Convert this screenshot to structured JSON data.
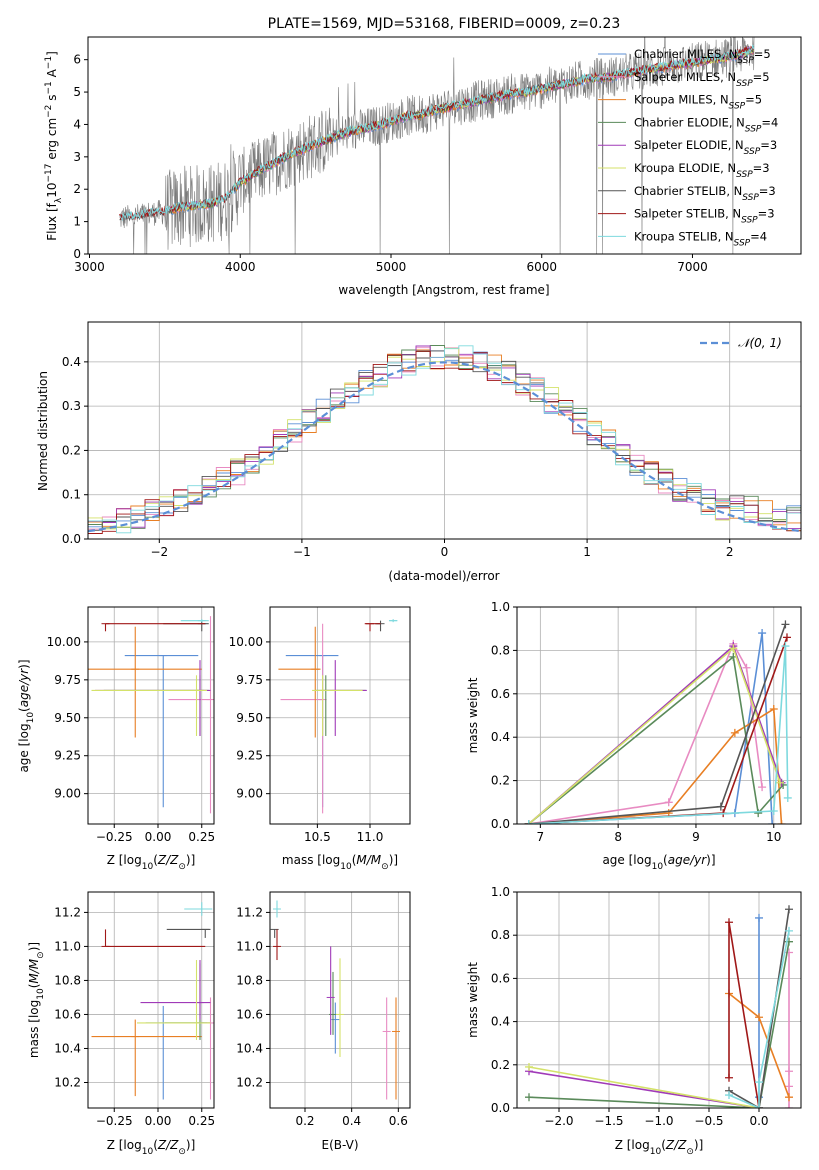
{
  "figure_title": "PLATE=1569, MJD=53168, FIBERID=0009, z=0.23",
  "colors": {
    "Chabrier MILES": "#5b8fd6",
    "Salpeter MILES": "#e88bc2",
    "Kroupa MILES": "#e87f24",
    "Chabrier ELODIE": "#5a8a5a",
    "Salpeter ELODIE": "#a03ab8",
    "Kroupa ELODIE": "#d4e26a",
    "Chabrier STELIB": "#555555",
    "Salpeter STELIB": "#a01818",
    "Kroupa STELIB": "#7ed9de",
    "data": "#7a7a7a",
    "normal": "#5b8fd6"
  },
  "chart_data": [
    {
      "id": "spectrum",
      "type": "line",
      "title": "PLATE=1569, MJD=53168, FIBERID=0009, z=0.23",
      "xlabel": "wavelength [Angstrom, rest frame]",
      "ylabel": "Flux [f_λ 10^-17 erg cm^-2 s^-1 A^-1]",
      "xlim": [
        2990,
        7720
      ],
      "ylim": [
        0,
        6.7
      ],
      "xticks": [
        3000,
        4000,
        5000,
        6000,
        7000
      ],
      "yticks": [
        0,
        1,
        2,
        3,
        4,
        5,
        6
      ],
      "legend_position": "right",
      "legend": [
        {
          "label": "Chabrier MILES, N_SSP=5",
          "series": "Chabrier MILES"
        },
        {
          "label": "Salpeter MILES, N_SSP=5",
          "series": "Salpeter MILES"
        },
        {
          "label": "Kroupa MILES, N_SSP=5",
          "series": "Kroupa MILES"
        },
        {
          "label": "Chabrier ELODIE, N_SSP=4",
          "series": "Chabrier ELODIE"
        },
        {
          "label": "Salpeter ELODIE, N_SSP=3",
          "series": "Salpeter ELODIE"
        },
        {
          "label": "Kroupa ELODIE, N_SSP=3",
          "series": "Kroupa ELODIE"
        },
        {
          "label": "Chabrier STELIB, N_SSP=3",
          "series": "Chabrier STELIB"
        },
        {
          "label": "Salpeter STELIB, N_SSP=3",
          "series": "Salpeter STELIB"
        },
        {
          "label": "Kroupa STELIB, N_SSP=4",
          "series": "Kroupa STELIB"
        }
      ],
      "data_curve_x": [
        3200,
        3300,
        3400,
        3500,
        3600,
        3700,
        3800,
        3900,
        4000,
        4100,
        4200,
        4300,
        4400,
        4500,
        4600,
        4700,
        4800,
        4900,
        5000,
        5100,
        5200,
        5300,
        5400,
        5500,
        5600,
        5700,
        5800,
        5900,
        6000,
        6100,
        6200,
        6300,
        6400,
        6500,
        6600,
        6700,
        6800,
        6900,
        7000,
        7100,
        7200,
        7300,
        7400
      ],
      "data_curve_y": [
        1.1,
        1.15,
        1.25,
        1.3,
        1.45,
        1.5,
        1.55,
        1.7,
        2.2,
        2.5,
        2.75,
        3.0,
        3.2,
        3.4,
        3.55,
        3.75,
        3.85,
        3.95,
        4.1,
        4.25,
        4.3,
        4.45,
        4.55,
        4.65,
        4.75,
        4.85,
        4.95,
        5.0,
        5.1,
        5.2,
        5.3,
        5.4,
        5.45,
        5.5,
        5.6,
        5.7,
        5.75,
        5.85,
        5.9,
        6.0,
        6.05,
        6.15,
        6.3
      ],
      "note": "model curves follow the data curve; observed spectrum (grey) is noisy around it"
    },
    {
      "id": "residuals",
      "type": "histogram",
      "xlabel": "(data-model)/error",
      "ylabel": "Normed distribution",
      "xlim": [
        -2.5,
        2.5
      ],
      "ylim": [
        0,
        0.49
      ],
      "xticks": [
        -2,
        -1,
        0,
        1,
        2
      ],
      "yticks": [
        0,
        0.1,
        0.2,
        0.3,
        0.4
      ],
      "legend": [
        {
          "label": "𝒩(0,1)",
          "style": "dashed"
        }
      ],
      "legend_position": "top-right",
      "bin_width": 0.1
    },
    {
      "id": "z-vs-age",
      "type": "errorbar",
      "xlabel": "Z [log10(Z/Z☉)]",
      "ylabel": "age [log10(age/yr)]",
      "xlim": [
        -0.4,
        0.32
      ],
      "ylim": [
        8.8,
        10.23
      ],
      "xticks": [
        -0.25,
        0.0,
        0.25
      ],
      "xtick_labels": [
        "−0.25",
        "0.00",
        "0.25"
      ],
      "yticks": [
        9.0,
        9.25,
        9.5,
        9.75,
        10.0
      ],
      "ytick_labels": [
        "9.00",
        "9.25",
        "9.50",
        "9.75",
        "10.00"
      ],
      "points": [
        {
          "series": "Chabrier MILES",
          "x": 0.03,
          "xerr": [
            0.22,
            0.2
          ],
          "y": 9.91,
          "yerr": [
            1.0,
            0.0
          ]
        },
        {
          "series": "Salpeter MILES",
          "x": 0.3,
          "xerr": [
            0.24,
            0.0
          ],
          "y": 9.62,
          "yerr": [
            0.75,
            0.55
          ]
        },
        {
          "series": "Kroupa MILES",
          "x": -0.13,
          "xerr": [
            0.27,
            0.38
          ],
          "y": 9.82,
          "yerr": [
            0.45,
            0.28
          ]
        },
        {
          "series": "Chabrier ELODIE",
          "x": 0.24,
          "xerr": [
            0.55,
            0.05
          ],
          "y": 9.68,
          "yerr": [
            0.3,
            0.1
          ]
        },
        {
          "series": "Salpeter ELODIE",
          "x": 0.24,
          "xerr": [
            0.6,
            0.06
          ],
          "y": 9.68,
          "yerr": [
            0.3,
            0.2
          ]
        },
        {
          "series": "Kroupa ELODIE",
          "x": 0.22,
          "xerr": [
            0.6,
            0.06
          ],
          "y": 9.68,
          "yerr": [
            0.3,
            0.1
          ]
        },
        {
          "series": "Chabrier STELIB",
          "x": 0.25,
          "xerr": [
            0.22,
            0.04
          ],
          "y": 10.12,
          "yerr": [
            0.05,
            0.02
          ]
        },
        {
          "series": "Salpeter STELIB",
          "x": -0.3,
          "xerr": [
            0.0,
            0.57
          ],
          "y": 10.12,
          "yerr": [
            0.05,
            0.0
          ]
        },
        {
          "series": "Kroupa STELIB",
          "x": 0.25,
          "xerr": [
            0.12,
            0.04
          ],
          "y": 10.14,
          "yerr": [
            0.01,
            0.01
          ]
        }
      ]
    },
    {
      "id": "mass-vs-age",
      "type": "errorbar",
      "xlabel": "mass [log10(M/M☉)]",
      "ylabel": "",
      "xlim": [
        10.05,
        11.38
      ],
      "ylim": [
        8.8,
        10.23
      ],
      "xticks": [
        10.5,
        11.0
      ],
      "xtick_labels": [
        "10.5",
        "11.0"
      ],
      "yticks": [
        9.0,
        9.25,
        9.5,
        9.75,
        10.0
      ],
      "ytick_labels": [
        "9.00",
        "9.25",
        "9.50",
        "9.75",
        "10.00"
      ],
      "points": [
        {
          "series": "Chabrier MILES",
          "x": 10.55,
          "xerr": [
            0.35,
            0.15
          ],
          "y": 9.91,
          "yerr": [
            1.0,
            0.0
          ]
        },
        {
          "series": "Salpeter MILES",
          "x": 10.55,
          "xerr": [
            0.4,
            0.0
          ],
          "y": 9.62,
          "yerr": [
            0.75,
            0.5
          ]
        },
        {
          "series": "Kroupa MILES",
          "x": 10.48,
          "xerr": [
            0.35,
            0.05
          ],
          "y": 9.82,
          "yerr": [
            0.45,
            0.28
          ]
        },
        {
          "series": "Chabrier ELODIE",
          "x": 10.58,
          "xerr": [
            0.1,
            0.38
          ],
          "y": 9.68,
          "yerr": [
            0.3,
            0.1
          ]
        },
        {
          "series": "Salpeter ELODIE",
          "x": 10.67,
          "xerr": [
            0.1,
            0.3
          ],
          "y": 9.68,
          "yerr": [
            0.3,
            0.2
          ]
        },
        {
          "series": "Kroupa ELODIE",
          "x": 10.55,
          "xerr": [
            0.1,
            0.38
          ],
          "y": 9.68,
          "yerr": [
            0.3,
            0.1
          ]
        },
        {
          "series": "Chabrier STELIB",
          "x": 11.1,
          "xerr": [
            0.05,
            0.0
          ],
          "y": 10.12,
          "yerr": [
            0.05,
            0.02
          ]
        },
        {
          "series": "Salpeter STELIB",
          "x": 11.0,
          "xerr": [
            0.05,
            0.1
          ],
          "y": 10.12,
          "yerr": [
            0.05,
            0.0
          ]
        },
        {
          "series": "Kroupa STELIB",
          "x": 11.22,
          "xerr": [
            0.04,
            0.04
          ],
          "y": 10.14,
          "yerr": [
            0.01,
            0.01
          ]
        }
      ]
    },
    {
      "id": "age-vs-weight",
      "type": "line",
      "xlabel": "age [log10(age/yr)]",
      "ylabel": "mass weight",
      "xlim": [
        6.7,
        10.35
      ],
      "ylim": [
        0,
        1.0
      ],
      "xticks": [
        7,
        8,
        9,
        10
      ],
      "yticks": [
        0.0,
        0.2,
        0.4,
        0.6,
        0.8,
        1.0
      ],
      "yticks_format": 1,
      "series": [
        {
          "name": "Chabrier MILES",
          "x": [
            6.85,
            9.5,
            9.85,
            9.98
          ],
          "y": [
            0.0,
            0.05,
            0.88,
            0.0
          ]
        },
        {
          "name": "Salpeter MILES",
          "x": [
            6.85,
            8.65,
            9.48,
            9.65,
            9.85
          ],
          "y": [
            0.0,
            0.1,
            0.83,
            0.72,
            0.17
          ]
        },
        {
          "name": "Kroupa MILES",
          "x": [
            6.85,
            8.65,
            9.5,
            10.0,
            10.1
          ],
          "y": [
            0.0,
            0.05,
            0.42,
            0.53,
            0.0
          ]
        },
        {
          "name": "Chabrier ELODIE",
          "x": [
            6.85,
            9.48,
            9.8,
            10.12
          ],
          "y": [
            0.0,
            0.77,
            0.05,
            0.18
          ]
        },
        {
          "name": "Salpeter ELODIE",
          "x": [
            6.85,
            9.48,
            10.1
          ],
          "y": [
            0.0,
            0.82,
            0.19
          ]
        },
        {
          "name": "Kroupa ELODIE",
          "x": [
            6.85,
            9.48,
            10.08
          ],
          "y": [
            0.0,
            0.81,
            0.19
          ]
        },
        {
          "name": "Chabrier STELIB",
          "x": [
            6.85,
            9.32,
            10.15
          ],
          "y": [
            0.0,
            0.08,
            0.92
          ]
        },
        {
          "name": "Salpeter STELIB",
          "x": [
            6.85,
            9.35,
            10.17
          ],
          "y": [
            0.0,
            0.05,
            0.86
          ]
        },
        {
          "name": "Kroupa STELIB",
          "x": [
            6.85,
            10.0,
            10.15,
            10.18
          ],
          "y": [
            0.0,
            0.06,
            0.82,
            0.12
          ]
        }
      ]
    },
    {
      "id": "z-vs-mass",
      "type": "errorbar",
      "xlabel": "Z [log10(Z/Z☉)]",
      "ylabel": "mass [log10(M/M☉)]",
      "xlim": [
        -0.4,
        0.32
      ],
      "ylim": [
        10.05,
        11.32
      ],
      "xticks": [
        -0.25,
        0.0,
        0.25
      ],
      "xtick_labels": [
        "−0.25",
        "0.00",
        "0.25"
      ],
      "yticks": [
        10.2,
        10.4,
        10.6,
        10.8,
        11.0,
        11.2
      ],
      "ytick_labels": [
        "10.2",
        "10.4",
        "10.6",
        "10.8",
        "11.0",
        "11.2"
      ],
      "points": [
        {
          "series": "Chabrier MILES",
          "x": 0.03,
          "xerr": [
            0.1,
            0.25
          ],
          "y": 10.55,
          "yerr": [
            0.45,
            0.1
          ]
        },
        {
          "series": "Salpeter MILES",
          "x": 0.3,
          "xerr": [
            0.05,
            0.0
          ],
          "y": 10.55,
          "yerr": [
            0.45,
            0.15
          ]
        },
        {
          "series": "Kroupa MILES",
          "x": -0.13,
          "xerr": [
            0.25,
            0.38
          ],
          "y": 10.47,
          "yerr": [
            0.35,
            0.1
          ]
        },
        {
          "series": "Chabrier ELODIE",
          "x": 0.24,
          "xerr": [
            0.2,
            0.06
          ],
          "y": 10.55,
          "yerr": [
            0.1,
            0.35
          ]
        },
        {
          "series": "Salpeter ELODIE",
          "x": 0.24,
          "xerr": [
            0.34,
            0.06
          ],
          "y": 10.67,
          "yerr": [
            0.1,
            0.25
          ]
        },
        {
          "series": "Kroupa ELODIE",
          "x": 0.22,
          "xerr": [
            0.34,
            0.08
          ],
          "y": 10.55,
          "yerr": [
            0.1,
            0.37
          ]
        },
        {
          "series": "Chabrier STELIB",
          "x": 0.27,
          "xerr": [
            0.22,
            0.03
          ],
          "y": 11.1,
          "yerr": [
            0.05,
            0.0
          ]
        },
        {
          "series": "Salpeter STELIB",
          "x": -0.3,
          "xerr": [
            0.0,
            0.57
          ],
          "y": 11.0,
          "yerr": [
            0.0,
            0.1
          ]
        },
        {
          "series": "Kroupa STELIB",
          "x": 0.25,
          "xerr": [
            0.1,
            0.06
          ],
          "y": 11.22,
          "yerr": [
            0.04,
            0.04
          ]
        }
      ]
    },
    {
      "id": "ebv-vs-mass",
      "type": "errorbar",
      "xlabel": "E(B-V)",
      "ylabel": "",
      "xlim": [
        0.05,
        0.65
      ],
      "ylim": [
        10.05,
        11.32
      ],
      "xticks": [
        0.2,
        0.4,
        0.6
      ],
      "xtick_labels": [
        "0.2",
        "0.4",
        "0.6"
      ],
      "yticks": [
        10.2,
        10.4,
        10.6,
        10.8,
        11.0,
        11.2
      ],
      "ytick_labels": [
        "10.2",
        "10.4",
        "10.6",
        "10.8",
        "11.0",
        "11.2"
      ],
      "points": [
        {
          "series": "Chabrier MILES",
          "x": 0.33,
          "y": 10.57,
          "yerr": [
            0.2,
            0.1
          ]
        },
        {
          "series": "Salpeter MILES",
          "x": 0.55,
          "y": 10.5,
          "yerr": [
            0.4,
            0.2
          ]
        },
        {
          "series": "Kroupa MILES",
          "x": 0.59,
          "y": 10.5,
          "yerr": [
            0.4,
            0.2
          ]
        },
        {
          "series": "Chabrier ELODIE",
          "x": 0.32,
          "y": 10.6,
          "yerr": [
            0.12,
            0.25
          ]
        },
        {
          "series": "Salpeter ELODIE",
          "x": 0.31,
          "y": 10.7,
          "yerr": [
            0.22,
            0.3
          ]
        },
        {
          "series": "Kroupa ELODIE",
          "x": 0.35,
          "y": 10.6,
          "yerr": [
            0.25,
            0.33
          ]
        },
        {
          "series": "Chabrier STELIB",
          "x": 0.07,
          "y": 11.1,
          "yerr": [
            0.05,
            0.0
          ]
        },
        {
          "series": "Salpeter STELIB",
          "x": 0.08,
          "y": 11.0,
          "yerr": [
            0.08,
            0.1
          ]
        },
        {
          "series": "Kroupa STELIB",
          "x": 0.08,
          "y": 11.22,
          "yerr": [
            0.05,
            0.05
          ]
        }
      ]
    },
    {
      "id": "z-vs-weight",
      "type": "line",
      "xlabel": "Z [log10(Z/Z☉)]",
      "ylabel": "mass weight",
      "xlim": [
        -2.42,
        0.42
      ],
      "ylim": [
        0,
        1.0
      ],
      "xticks": [
        -2.0,
        -1.5,
        -1.0,
        -0.5,
        0.0
      ],
      "xtick_labels": [
        "−2.0",
        "−1.5",
        "−1.0",
        "−0.5",
        "0.0"
      ],
      "yticks": [
        0.0,
        0.2,
        0.4,
        0.6,
        0.8,
        1.0
      ],
      "series": [
        {
          "name": "Chabrier MILES",
          "x": [
            0.0,
            0.0,
            0.0
          ],
          "y": [
            0.0,
            0.88,
            0.05
          ]
        },
        {
          "name": "Salpeter MILES",
          "x": [
            0.3,
            0.3,
            0.3,
            0.3
          ],
          "y": [
            0.0,
            0.1,
            0.72,
            0.17
          ]
        },
        {
          "name": "Kroupa MILES",
          "x": [
            -0.3,
            0.0,
            0.3
          ],
          "y": [
            0.53,
            0.42,
            0.05
          ]
        },
        {
          "name": "Chabrier ELODIE",
          "x": [
            -2.3,
            0.0,
            0.3
          ],
          "y": [
            0.05,
            0.0,
            0.77
          ]
        },
        {
          "name": "Salpeter ELODIE",
          "x": [
            -2.3,
            0.0
          ],
          "y": [
            0.17,
            0.0
          ]
        },
        {
          "name": "Kroupa ELODIE",
          "x": [
            -2.3,
            0.0
          ],
          "y": [
            0.19,
            0.0
          ]
        },
        {
          "name": "Chabrier STELIB",
          "x": [
            -0.3,
            0.0,
            0.3
          ],
          "y": [
            0.08,
            0.0,
            0.92
          ]
        },
        {
          "name": "Salpeter STELIB",
          "x": [
            -0.3,
            -0.3,
            0.0
          ],
          "y": [
            0.14,
            0.86,
            0.0
          ]
        },
        {
          "name": "Kroupa STELIB",
          "x": [
            -0.3,
            0.0,
            0.0,
            0.3
          ],
          "y": [
            0.06,
            0.0,
            0.12,
            0.82
          ]
        }
      ]
    }
  ]
}
